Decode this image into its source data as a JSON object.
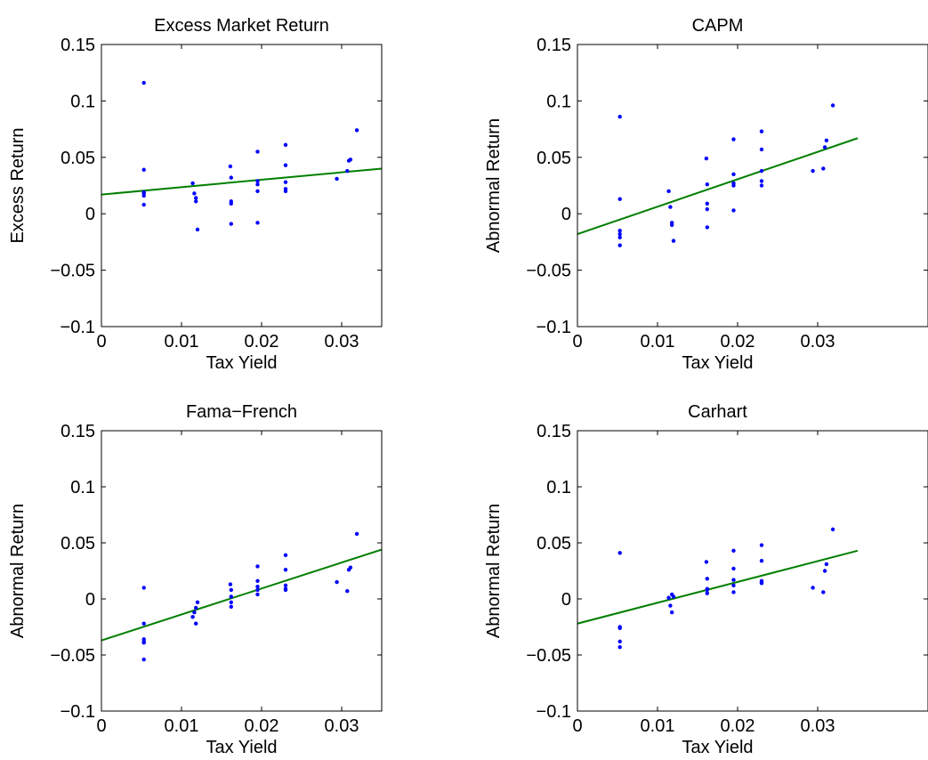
{
  "colors": {
    "points": "#0000ff",
    "fit": "#007f00",
    "axes": "#000000"
  },
  "chart_data": [
    {
      "type": "scatter",
      "title": "Excess Market Return",
      "xlabel": "Tax Yield",
      "ylabel": "Excess Return",
      "xlim": [
        0,
        0.035
      ],
      "ylim": [
        -0.1,
        0.15
      ],
      "xticks": [
        0,
        0.01,
        0.02,
        0.03
      ],
      "xtick_labels": [
        "0",
        "0.01",
        "0.02",
        "0.03"
      ],
      "yticks": [
        -0.1,
        -0.05,
        0,
        0.05,
        0.1,
        0.15
      ],
      "ytick_labels": [
        "−0.1",
        "−0.05",
        "0",
        "0.05",
        "0.1",
        "0.15"
      ],
      "grid": false,
      "points": [
        [
          0.0053,
          0.116
        ],
        [
          0.0053,
          0.039
        ],
        [
          0.0053,
          0.019
        ],
        [
          0.0053,
          0.018
        ],
        [
          0.0053,
          0.016
        ],
        [
          0.0053,
          0.008
        ],
        [
          0.0114,
          0.027
        ],
        [
          0.0116,
          0.018
        ],
        [
          0.0118,
          0.014
        ],
        [
          0.0118,
          0.011
        ],
        [
          0.012,
          -0.014
        ],
        [
          0.0161,
          0.042
        ],
        [
          0.0162,
          0.032
        ],
        [
          0.0162,
          0.011
        ],
        [
          0.0162,
          0.009
        ],
        [
          0.0162,
          -0.009
        ],
        [
          0.0195,
          0.055
        ],
        [
          0.0195,
          0.029
        ],
        [
          0.0195,
          0.026
        ],
        [
          0.0195,
          0.02
        ],
        [
          0.0195,
          -0.008
        ],
        [
          0.023,
          0.061
        ],
        [
          0.023,
          0.043
        ],
        [
          0.023,
          0.028
        ],
        [
          0.023,
          0.022
        ],
        [
          0.023,
          0.02
        ],
        [
          0.0294,
          0.031
        ],
        [
          0.0307,
          0.038
        ],
        [
          0.0309,
          0.047
        ],
        [
          0.0311,
          0.048
        ],
        [
          0.0319,
          0.074
        ]
      ],
      "fit_line": {
        "x": [
          0,
          0.035
        ],
        "y": [
          0.017,
          0.04
        ]
      }
    },
    {
      "type": "scatter",
      "title": "CAPM",
      "xlabel": "Tax Yield",
      "ylabel": "Abnormal Return",
      "xlim": [
        0,
        0.035
      ],
      "ylim": [
        -0.1,
        0.15
      ],
      "xticks": [
        0,
        0.01,
        0.02,
        0.03
      ],
      "xtick_labels": [
        "0",
        "0.01",
        "0.02",
        "0.03"
      ],
      "yticks": [
        -0.1,
        -0.05,
        0,
        0.05,
        0.1,
        0.15
      ],
      "ytick_labels": [
        "−0.1",
        "−0.05",
        "0",
        "0.05",
        "0.1",
        "0.15"
      ],
      "grid": false,
      "points": [
        [
          0.0053,
          0.086
        ],
        [
          0.0053,
          0.013
        ],
        [
          0.0053,
          -0.015
        ],
        [
          0.0053,
          -0.018
        ],
        [
          0.0053,
          -0.021
        ],
        [
          0.0053,
          -0.028
        ],
        [
          0.0114,
          0.02
        ],
        [
          0.0116,
          0.006
        ],
        [
          0.0118,
          -0.008
        ],
        [
          0.0118,
          -0.01
        ],
        [
          0.012,
          -0.024
        ],
        [
          0.0161,
          0.049
        ],
        [
          0.0162,
          0.026
        ],
        [
          0.0162,
          0.009
        ],
        [
          0.0162,
          0.004
        ],
        [
          0.0162,
          -0.012
        ],
        [
          0.0195,
          0.066
        ],
        [
          0.0195,
          0.035
        ],
        [
          0.0195,
          0.027
        ],
        [
          0.0195,
          0.025
        ],
        [
          0.0195,
          0.003
        ],
        [
          0.023,
          0.073
        ],
        [
          0.023,
          0.057
        ],
        [
          0.023,
          0.038
        ],
        [
          0.023,
          0.029
        ],
        [
          0.023,
          0.025
        ],
        [
          0.0294,
          0.038
        ],
        [
          0.0307,
          0.04
        ],
        [
          0.0309,
          0.059
        ],
        [
          0.0311,
          0.065
        ],
        [
          0.0319,
          0.096
        ]
      ],
      "fit_line": {
        "x": [
          0,
          0.035
        ],
        "y": [
          -0.018,
          0.067
        ]
      }
    },
    {
      "type": "scatter",
      "title": "Fama−French",
      "xlabel": "Tax Yield",
      "ylabel": "Abnormal Return",
      "xlim": [
        0,
        0.035
      ],
      "ylim": [
        -0.1,
        0.15
      ],
      "xticks": [
        0,
        0.01,
        0.02,
        0.03
      ],
      "xtick_labels": [
        "0",
        "0.01",
        "0.02",
        "0.03"
      ],
      "yticks": [
        -0.1,
        -0.05,
        0,
        0.05,
        0.1,
        0.15
      ],
      "ytick_labels": [
        "−0.1",
        "−0.05",
        "0",
        "0.05",
        "0.1",
        "0.15"
      ],
      "grid": false,
      "points": [
        [
          0.0053,
          0.01
        ],
        [
          0.0053,
          -0.022
        ],
        [
          0.0053,
          -0.036
        ],
        [
          0.0053,
          -0.038
        ],
        [
          0.0053,
          -0.039
        ],
        [
          0.0053,
          -0.054
        ],
        [
          0.0114,
          -0.016
        ],
        [
          0.0116,
          -0.012
        ],
        [
          0.0118,
          -0.008
        ],
        [
          0.0118,
          -0.022
        ],
        [
          0.012,
          -0.003
        ],
        [
          0.0161,
          0.013
        ],
        [
          0.0162,
          0.008
        ],
        [
          0.0162,
          0.002
        ],
        [
          0.0162,
          -0.003
        ],
        [
          0.0162,
          -0.007
        ],
        [
          0.0195,
          0.029
        ],
        [
          0.0195,
          0.016
        ],
        [
          0.0195,
          0.011
        ],
        [
          0.0195,
          0.008
        ],
        [
          0.0195,
          0.004
        ],
        [
          0.023,
          0.039
        ],
        [
          0.023,
          0.026
        ],
        [
          0.023,
          0.012
        ],
        [
          0.023,
          0.009
        ],
        [
          0.023,
          0.008
        ],
        [
          0.0294,
          0.015
        ],
        [
          0.0307,
          0.007
        ],
        [
          0.0309,
          0.026
        ],
        [
          0.0311,
          0.028
        ],
        [
          0.0319,
          0.058
        ]
      ],
      "fit_line": {
        "x": [
          0,
          0.035
        ],
        "y": [
          -0.037,
          0.044
        ]
      }
    },
    {
      "type": "scatter",
      "title": "Carhart",
      "xlabel": "Tax Yield",
      "ylabel": "Abnormal Return",
      "xlim": [
        0,
        0.035
      ],
      "ylim": [
        -0.1,
        0.15
      ],
      "xticks": [
        0,
        0.01,
        0.02,
        0.03
      ],
      "xtick_labels": [
        "0",
        "0.01",
        "0.02",
        "0.03"
      ],
      "yticks": [
        -0.1,
        -0.05,
        0,
        0.05,
        0.1,
        0.15
      ],
      "ytick_labels": [
        "−0.1",
        "−0.05",
        "0",
        "0.05",
        "0.1",
        "0.15"
      ],
      "grid": false,
      "points": [
        [
          0.0053,
          0.041
        ],
        [
          0.0053,
          -0.025
        ],
        [
          0.0053,
          -0.026
        ],
        [
          0.0053,
          -0.038
        ],
        [
          0.0053,
          -0.043
        ],
        [
          0.0114,
          0.001
        ],
        [
          0.0116,
          -0.006
        ],
        [
          0.0118,
          0.004
        ],
        [
          0.0118,
          -0.012
        ],
        [
          0.012,
          0.002
        ],
        [
          0.0161,
          0.033
        ],
        [
          0.0162,
          0.018
        ],
        [
          0.0162,
          0.009
        ],
        [
          0.0162,
          0.008
        ],
        [
          0.0162,
          0.005
        ],
        [
          0.0195,
          0.043
        ],
        [
          0.0195,
          0.027
        ],
        [
          0.0195,
          0.017
        ],
        [
          0.0195,
          0.012
        ],
        [
          0.0195,
          0.006
        ],
        [
          0.023,
          0.048
        ],
        [
          0.023,
          0.034
        ],
        [
          0.023,
          0.016
        ],
        [
          0.023,
          0.015
        ],
        [
          0.023,
          0.014
        ],
        [
          0.0294,
          0.01
        ],
        [
          0.0307,
          0.006
        ],
        [
          0.0309,
          0.025
        ],
        [
          0.0311,
          0.031
        ],
        [
          0.0319,
          0.062
        ]
      ],
      "fit_line": {
        "x": [
          0,
          0.035
        ],
        "y": [
          -0.022,
          0.043
        ]
      }
    }
  ]
}
